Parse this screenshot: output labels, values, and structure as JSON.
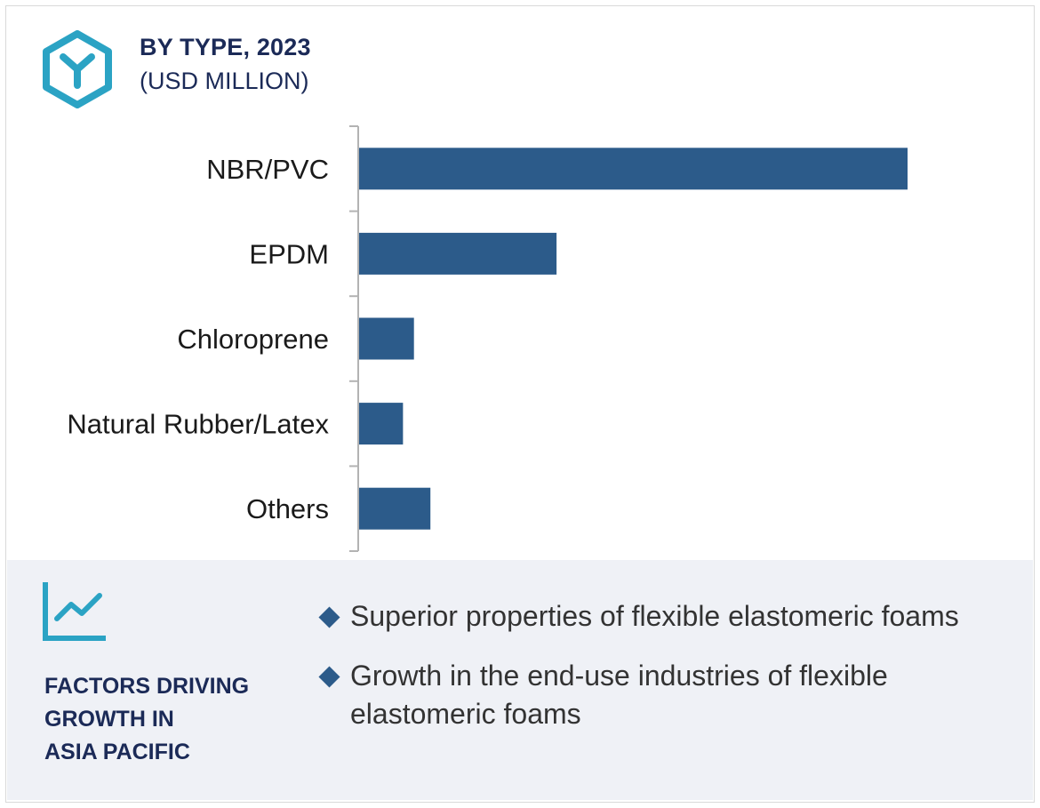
{
  "header": {
    "title": "BY TYPE, 2023",
    "subtitle": "(USD MILLION)",
    "icon": "hexagon-y-icon"
  },
  "colors": {
    "bar": "#2c5b8a",
    "title": "#1b2a57",
    "accent_icon": "#2ba3c4",
    "panel_bg": "#eff1f6"
  },
  "chart_data": {
    "type": "bar",
    "orientation": "horizontal",
    "categories": [
      "NBR/PVC",
      "EPDM",
      "Chloroprene",
      "Natural Rubber/Latex",
      "Others"
    ],
    "values": [
      100,
      36,
      10,
      8,
      13
    ],
    "title": "BY TYPE, 2023",
    "subtitle": "(USD MILLION)",
    "xlabel": "",
    "ylabel": "",
    "xlim": [
      0,
      100
    ],
    "grid": false,
    "legend": "none"
  },
  "factors": {
    "icon": "trend-line-icon",
    "title_lines": [
      "FACTORS DRIVING",
      "GROWTH IN",
      "ASIA PACIFIC"
    ],
    "items": [
      "Superior properties of flexible elastomeric foams",
      "Growth in the end-use industries of flexible elastomeric foams"
    ]
  }
}
